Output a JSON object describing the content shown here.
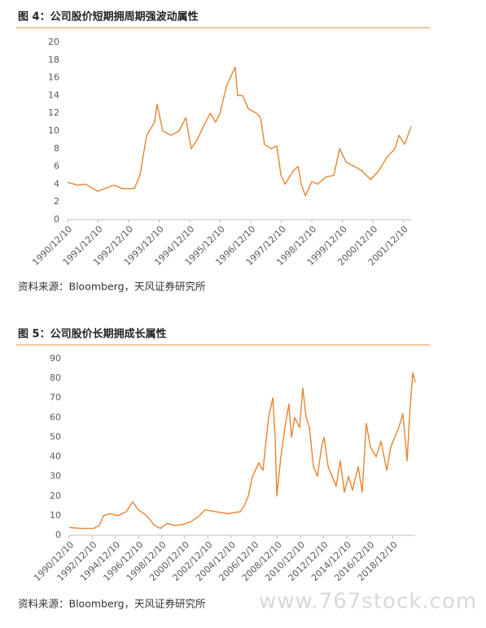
{
  "chart_data": [
    {
      "type": "line",
      "title": "图 4：公司股价短期拥周期强波动属性",
      "source": "资料来源：Bloomberg，天风证券研究所",
      "x": [
        1990.95,
        1991.27,
        1991.54,
        1991.94,
        1992.47,
        1992.74,
        1993.14,
        1993.32,
        1993.54,
        1993.8,
        1993.88,
        1994.07,
        1994.34,
        1994.6,
        1994.82,
        1995.0,
        1995.19,
        1995.4,
        1995.62,
        1995.8,
        1995.94,
        1996.15,
        1996.34,
        1996.44,
        1996.52,
        1996.68,
        1996.87,
        1997.14,
        1997.27,
        1997.4,
        1997.62,
        1997.8,
        1997.94,
        1998.07,
        1998.34,
        1998.5,
        1998.6,
        1998.74,
        1998.95,
        1999.14,
        1999.4,
        1999.67,
        1999.86,
        2000.07,
        2000.34,
        2000.6,
        2000.87,
        2001.14,
        2001.4,
        2001.67,
        2001.8,
        2001.99,
        2002.2
      ],
      "series": [
        {
          "color": "#e8842f",
          "values": [
            4.2,
            3.9,
            4.0,
            3.2,
            3.9,
            3.5,
            3.5,
            5,
            9.5,
            11,
            13,
            10,
            9.5,
            10,
            11.5,
            8,
            9,
            10.5,
            12,
            11,
            12,
            15,
            16.5,
            17.2,
            14,
            14,
            12.5,
            12,
            11.5,
            8.5,
            8,
            8.3,
            5,
            4,
            5.5,
            6,
            4,
            2.7,
            4.3,
            4,
            4.8,
            5,
            8,
            6.5,
            6,
            5.5,
            4.5,
            5.5,
            7,
            8,
            9.5,
            8.5,
            10.5
          ]
        }
      ],
      "xlim": [
        1990.95,
        2002.2
      ],
      "xticks": [
        {
          "value": 1990.95,
          "label": "1990/12/10"
        },
        {
          "value": 1991.95,
          "label": "1991/12/10"
        },
        {
          "value": 1992.95,
          "label": "1992/12/10"
        },
        {
          "value": 1993.95,
          "label": "1993/12/10"
        },
        {
          "value": 1994.95,
          "label": "1994/12/10"
        },
        {
          "value": 1995.95,
          "label": "1995/12/10"
        },
        {
          "value": 1996.95,
          "label": "1996/12/10"
        },
        {
          "value": 1997.95,
          "label": "1997/12/10"
        },
        {
          "value": 1998.95,
          "label": "1998/12/10"
        },
        {
          "value": 1999.95,
          "label": "1999/12/10"
        },
        {
          "value": 2000.95,
          "label": "2000/12/10"
        },
        {
          "value": 2001.95,
          "label": "2001/12/10"
        }
      ],
      "ylim": [
        0,
        20
      ],
      "yticks": [
        0,
        2,
        4,
        6,
        8,
        10,
        12,
        14,
        16,
        18,
        20
      ]
    },
    {
      "type": "line",
      "title": "图 5：公司股价长期拥成长属性",
      "source": "资料来源：Bloomberg，天风证券研究所",
      "x": [
        1990.95,
        1992.01,
        1993.06,
        1993.56,
        1993.91,
        1994.47,
        1995.18,
        1995.88,
        1996.44,
        1996.94,
        1997.64,
        1998.34,
        1998.84,
        1999.4,
        2000.11,
        2000.81,
        2001.51,
        2002.22,
        2002.71,
        2003.63,
        2004.68,
        2005.74,
        2006.09,
        2006.44,
        2006.8,
        2007.36,
        2007.71,
        2008.2,
        2008.56,
        2008.77,
        2008.91,
        2009.26,
        2009.61,
        2009.96,
        2010.18,
        2010.46,
        2010.88,
        2011.16,
        2011.44,
        2011.73,
        2012.08,
        2012.43,
        2012.78,
        2013.0,
        2013.35,
        2013.7,
        2014.05,
        2014.4,
        2014.75,
        2015.11,
        2015.46,
        2015.95,
        2016.3,
        2016.65,
        2017.01,
        2017.5,
        2017.92,
        2018.42,
        2018.77,
        2019.47,
        2019.82,
        2020.18,
        2020.39,
        2020.67,
        2020.88
      ],
      "series": [
        {
          "color": "#e8842f",
          "values": [
            4,
            3.5,
            3.5,
            5,
            10,
            11,
            10,
            12,
            17,
            13,
            10,
            5,
            3.5,
            6,
            5,
            5.5,
            7,
            10,
            13,
            12,
            11,
            12,
            15,
            20,
            30,
            37,
            33,
            60,
            70,
            50,
            20,
            40,
            55,
            67,
            50,
            60,
            55,
            75,
            60,
            55,
            35,
            30,
            45,
            50,
            35,
            30,
            25,
            38,
            22,
            30,
            23,
            35,
            22,
            57,
            45,
            40,
            48,
            33,
            45,
            55,
            62,
            38,
            60,
            83,
            78
          ]
        }
      ],
      "xlim": [
        1990.95,
        2020.88
      ],
      "xticks": [
        {
          "value": 1990.95,
          "label": "1990/12/10"
        },
        {
          "value": 1992.95,
          "label": "1992/12/10"
        },
        {
          "value": 1994.95,
          "label": "1994/12/10"
        },
        {
          "value": 1996.95,
          "label": "1996/12/10"
        },
        {
          "value": 1998.95,
          "label": "1998/12/10"
        },
        {
          "value": 2000.95,
          "label": "2000/12/10"
        },
        {
          "value": 2002.95,
          "label": "2002/12/10"
        },
        {
          "value": 2004.95,
          "label": "2004/12/10"
        },
        {
          "value": 2006.95,
          "label": "2006/12/10"
        },
        {
          "value": 2008.95,
          "label": "2008/12/10"
        },
        {
          "value": 2010.95,
          "label": "2010/12/10"
        },
        {
          "value": 2012.95,
          "label": "2012/12/10"
        },
        {
          "value": 2014.95,
          "label": "2014/12/10"
        },
        {
          "value": 2016.95,
          "label": "2016/12/10"
        },
        {
          "value": 2018.95,
          "label": "2018/12/10"
        }
      ],
      "ylim": [
        0,
        90
      ],
      "yticks": [
        0,
        10,
        20,
        30,
        40,
        50,
        60,
        70,
        80,
        90
      ]
    }
  ],
  "watermark": "www.767stock.com"
}
